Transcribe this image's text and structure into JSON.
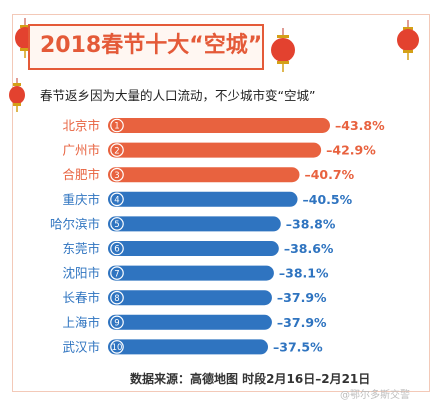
{
  "title": "2018春节十大“空城”",
  "subtitle": "春节返乡因为大量的人口流动，不少城市变“空城”",
  "source": "数据来源：高德地图   时段2月16日–2月21日",
  "watermark": "@鄂尔多斯交警",
  "colors": {
    "top3": "#e8623f",
    "rest": "#2f74c0",
    "accent": "#e45a38"
  },
  "chart_data": {
    "type": "bar",
    "orientation": "horizontal",
    "categories": [
      "北京市",
      "广州市",
      "合肥市",
      "重庆市",
      "哈尔滨市",
      "东莞市",
      "沈阳市",
      "长春市",
      "上海市",
      "武汉市"
    ],
    "ranks": [
      "1",
      "2",
      "3",
      "4",
      "5",
      "6",
      "7",
      "8",
      "9",
      "10"
    ],
    "values": [
      -43.8,
      -42.9,
      -40.7,
      -40.5,
      -38.8,
      -38.6,
      -38.1,
      -37.9,
      -37.9,
      -37.5
    ],
    "value_labels": [
      "–43.8%",
      "–42.9%",
      "–40.7%",
      "–40.5%",
      "–38.8%",
      "–38.6%",
      "–38.1%",
      "–37.9%",
      "–37.9%",
      "–37.5%"
    ],
    "highlight_count": 3,
    "title": "2018春节十大“空城”",
    "xlabel": "",
    "ylabel": "",
    "grid": false
  }
}
